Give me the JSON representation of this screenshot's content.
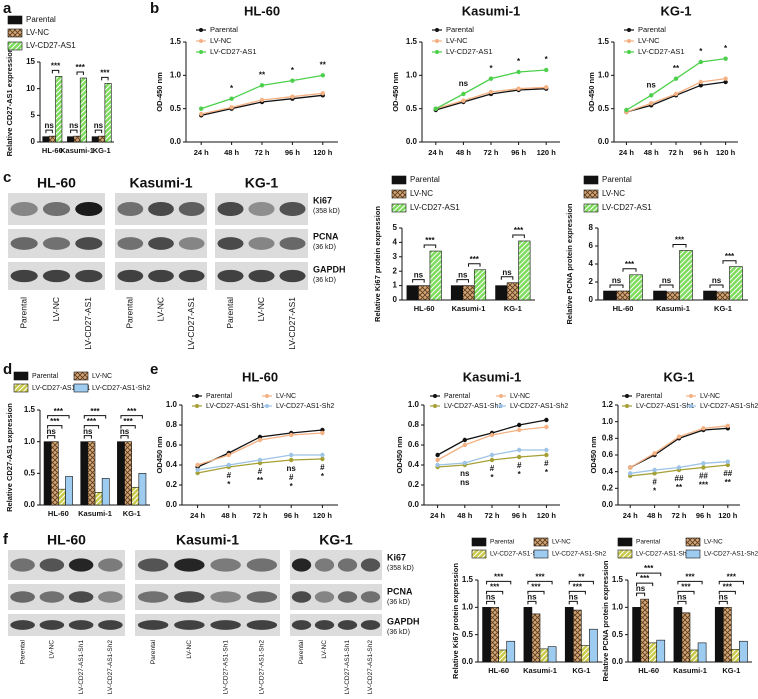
{
  "panel_labels": [
    "a",
    "b",
    "c",
    "d",
    "e",
    "f"
  ],
  "blots": [
    {
      "titles": [
        "HL-60",
        "Kasumi-1",
        "KG-1"
      ],
      "proteins": [
        "Ki67",
        "PCNA",
        "GAPDH"
      ],
      "sizes": [
        "(358 kD)",
        "(36 kD)",
        "(36 kD)"
      ],
      "lanes": [
        "Parental",
        "LV-NC",
        "LV-CD27-AS1"
      ]
    },
    {
      "titles": [
        "HL-60",
        "Kasumi-1",
        "KG-1"
      ],
      "proteins": [
        "Ki67",
        "PCNA",
        "GAPDH"
      ],
      "sizes": [
        "(358 kD)",
        "(36 kD)",
        "(36 kD)"
      ],
      "lanes": [
        "Parental",
        "LV-NC",
        "LV-CD27-AS1-Sh1",
        "LV-CD27-AS1-Sh2"
      ]
    }
  ],
  "chart_data": [
    {
      "type": "bar",
      "categories": [
        "HL-60",
        "Kasumi-1",
        "KG-1"
      ],
      "ylabel": "Relative CD27-AS1 expression",
      "ylim": [
        0,
        15
      ],
      "yticks": [
        0,
        5,
        10,
        15
      ],
      "series": [
        {
          "name": "Parental",
          "color": "#111111",
          "values": [
            1,
            1,
            1
          ]
        },
        {
          "name": "LV-NC",
          "color": "#d2a679",
          "hatch": "cross",
          "values": [
            1.1,
            1.1,
            1.1
          ]
        },
        {
          "name": "LV-CD27-AS1",
          "color": "#7ddc5c",
          "hatch": "diagonal",
          "values": [
            12.3,
            12,
            11
          ]
        }
      ],
      "annotations": [
        [
          "ns",
          "***"
        ],
        [
          "ns",
          "***"
        ],
        [
          "ns",
          "***"
        ]
      ]
    },
    {
      "type": "line",
      "title": "HL-60",
      "categories": [
        "24 h",
        "48 h",
        "72 h",
        "96 h",
        "120 h"
      ],
      "ylabel": "OD-450 nm",
      "ylim": [
        0,
        1.5
      ],
      "yticks": [
        {
          "value": 0,
          "label": "0.0"
        },
        {
          "value": 0.5,
          "label": "0.5"
        },
        {
          "value": 1,
          "label": "1.0"
        },
        {
          "value": 1.5,
          "label": "1.5"
        }
      ],
      "series": [
        {
          "name": "Parental",
          "color": "#111111",
          "values": [
            0.4,
            0.5,
            0.6,
            0.65,
            0.7
          ]
        },
        {
          "name": "LV-NC",
          "color": "#f4b183",
          "values": [
            0.42,
            0.52,
            0.63,
            0.68,
            0.73
          ]
        },
        {
          "name": "LV-CD27-AS1",
          "color": "#4cd04c",
          "values": [
            0.5,
            0.65,
            0.85,
            0.92,
            1.0
          ]
        }
      ],
      "annotations": [
        [],
        [
          "*"
        ],
        [
          "**"
        ],
        [
          "*"
        ],
        [
          "**"
        ]
      ]
    },
    {
      "type": "line",
      "title": "Kasumi-1",
      "categories": [
        "24 h",
        "48 h",
        "72 h",
        "96 h",
        "120 h"
      ],
      "ylabel": "OD-450 nm",
      "ylim": [
        0,
        1.5
      ],
      "yticks": [
        {
          "value": 0,
          "label": "0.0"
        },
        {
          "value": 0.5,
          "label": "0.5"
        },
        {
          "value": 1,
          "label": "1.0"
        },
        {
          "value": 1.5,
          "label": "1.5"
        }
      ],
      "series": [
        {
          "name": "Parental",
          "color": "#111111",
          "values": [
            0.48,
            0.6,
            0.72,
            0.78,
            0.8
          ]
        },
        {
          "name": "LV-NC",
          "color": "#f4b183",
          "values": [
            0.5,
            0.62,
            0.75,
            0.8,
            0.82
          ]
        },
        {
          "name": "LV-CD27-AS1",
          "color": "#4cd04c",
          "values": [
            0.5,
            0.72,
            0.95,
            1.05,
            1.08
          ]
        }
      ],
      "annotations": [
        [],
        [
          "ns"
        ],
        [
          "*"
        ],
        [
          "*"
        ],
        [
          "*"
        ]
      ]
    },
    {
      "type": "line",
      "title": "KG-1",
      "categories": [
        "24 h",
        "48 h",
        "72 h",
        "96 h",
        "120 h"
      ],
      "ylabel": "OD-450 nm",
      "ylim": [
        0,
        1.5
      ],
      "yticks": [
        {
          "value": 0,
          "label": "0.0"
        },
        {
          "value": 0.5,
          "label": "0.5"
        },
        {
          "value": 1,
          "label": "1.0"
        },
        {
          "value": 1.5,
          "label": "1.5"
        }
      ],
      "series": [
        {
          "name": "Parental",
          "color": "#111111",
          "values": [
            0.45,
            0.55,
            0.7,
            0.85,
            0.9
          ]
        },
        {
          "name": "LV-NC",
          "color": "#f4b183",
          "values": [
            0.45,
            0.58,
            0.72,
            0.9,
            0.95
          ]
        },
        {
          "name": "LV-CD27-AS1",
          "color": "#4cd04c",
          "values": [
            0.48,
            0.7,
            0.95,
            1.2,
            1.25
          ]
        }
      ],
      "annotations": [
        [],
        [
          "ns"
        ],
        [
          "**"
        ],
        [
          "*"
        ],
        [
          "*"
        ]
      ]
    },
    {
      "type": "bar",
      "categories": [
        "HL-60",
        "Kasumi-1",
        "KG-1"
      ],
      "ylabel": "Relative Ki67 protein expression",
      "ylim": [
        0,
        5
      ],
      "yticks": [
        0,
        1,
        2,
        3,
        4,
        5
      ],
      "series": [
        {
          "name": "Parental",
          "color": "#111111",
          "values": [
            1,
            1,
            1
          ]
        },
        {
          "name": "LV-NC",
          "color": "#d2a679",
          "hatch": "cross",
          "values": [
            1,
            1,
            1.2
          ]
        },
        {
          "name": "LV-CD27-AS1",
          "color": "#7ddc5c",
          "hatch": "diagonal",
          "values": [
            3.4,
            2.1,
            4.1
          ]
        }
      ],
      "annotations": [
        [
          "ns",
          "***"
        ],
        [
          "ns",
          "***"
        ],
        [
          "ns",
          "***"
        ]
      ]
    },
    {
      "type": "bar",
      "categories": [
        "HL-60",
        "Kasumi-1",
        "KG-1"
      ],
      "ylabel": "Relative PCNA protein expression",
      "ylim": [
        0,
        8
      ],
      "yticks": [
        0,
        2,
        4,
        6,
        8
      ],
      "series": [
        {
          "name": "Parental",
          "color": "#111111",
          "values": [
            1,
            1,
            1
          ]
        },
        {
          "name": "LV-NC",
          "color": "#d2a679",
          "hatch": "cross",
          "values": [
            1,
            0.9,
            0.9
          ]
        },
        {
          "name": "LV-CD27-AS1",
          "color": "#7ddc5c",
          "hatch": "diagonal",
          "values": [
            2.8,
            5.5,
            3.7
          ]
        }
      ],
      "annotations": [
        [
          "ns",
          "***"
        ],
        [
          "ns",
          "***"
        ],
        [
          "ns",
          "***"
        ]
      ]
    },
    {
      "type": "bar",
      "categories": [
        "HL-60",
        "Kasumi-1",
        "KG-1"
      ],
      "ylabel": "Relative CD27-AS1 expression",
      "ylim": [
        0,
        1.5
      ],
      "yticks": [
        {
          "value": 0,
          "label": "0.0"
        },
        {
          "value": 0.5,
          "label": "0.5"
        },
        {
          "value": 1,
          "label": "1.0"
        },
        {
          "value": 1.5,
          "label": "1.5"
        }
      ],
      "series": [
        {
          "name": "Parental",
          "color": "#111111",
          "values": [
            1,
            1,
            1
          ]
        },
        {
          "name": "LV-NC",
          "color": "#d2a679",
          "hatch": "cross",
          "values": [
            1,
            1,
            1
          ]
        },
        {
          "name": "LV-CD27-AS1-Sh1",
          "color": "#c9c94a",
          "hatch": "diagonal",
          "values": [
            0.25,
            0.2,
            0.28
          ]
        },
        {
          "name": "LV-CD27-AS1-Sh2",
          "color": "#9ecbf0",
          "values": [
            0.45,
            0.42,
            0.5
          ]
        }
      ],
      "annotations": [
        [
          "ns",
          "***",
          "***"
        ],
        [
          "ns",
          "***",
          "***"
        ],
        [
          "ns",
          "***",
          "***"
        ]
      ]
    },
    {
      "type": "line",
      "title": "HL-60",
      "categories": [
        "24 h",
        "48 h",
        "72 h",
        "96 h",
        "120 h"
      ],
      "ylabel": "OD450 nm",
      "ylim": [
        0,
        1.0
      ],
      "yticks": [
        {
          "value": 0,
          "label": "0.0"
        },
        {
          "value": 0.2,
          "label": "0.2"
        },
        {
          "value": 0.4,
          "label": "0.4"
        },
        {
          "value": 0.6,
          "label": "0.6"
        },
        {
          "value": 0.8,
          "label": "0.8"
        },
        {
          "value": 1,
          "label": "1.0"
        }
      ],
      "series": [
        {
          "name": "Parental",
          "color": "#111111",
          "values": [
            0.38,
            0.52,
            0.68,
            0.72,
            0.75
          ]
        },
        {
          "name": "LV-NC",
          "color": "#f4b183",
          "values": [
            0.4,
            0.5,
            0.65,
            0.7,
            0.72
          ]
        },
        {
          "name": "LV-CD27-AS1-Sh1",
          "color": "#a5a034",
          "values": [
            0.32,
            0.38,
            0.42,
            0.45,
            0.46
          ]
        },
        {
          "name": "LV-CD27-AS1-Sh2",
          "color": "#9dc3e6",
          "values": [
            0.35,
            0.4,
            0.45,
            0.5,
            0.5
          ]
        }
      ],
      "annotations": [
        [],
        [
          "#",
          "*"
        ],
        [
          "#",
          "**"
        ],
        [
          "ns",
          "#",
          "*"
        ],
        [
          "#",
          "*"
        ]
      ]
    },
    {
      "type": "line",
      "title": "Kasumi-1",
      "categories": [
        "24 h",
        "48 h",
        "72 h",
        "96 h",
        "120 h"
      ],
      "ylabel": "OD450 nm",
      "ylim": [
        0,
        1.0
      ],
      "yticks": [
        {
          "value": 0,
          "label": "0.0"
        },
        {
          "value": 0.2,
          "label": "0.2"
        },
        {
          "value": 0.4,
          "label": "0.4"
        },
        {
          "value": 0.6,
          "label": "0.6"
        },
        {
          "value": 0.8,
          "label": "0.8"
        },
        {
          "value": 1,
          "label": "1.0"
        }
      ],
      "series": [
        {
          "name": "Parental",
          "color": "#111111",
          "values": [
            0.5,
            0.65,
            0.72,
            0.8,
            0.85
          ]
        },
        {
          "name": "LV-NC",
          "color": "#f4b183",
          "values": [
            0.45,
            0.6,
            0.7,
            0.75,
            0.78
          ]
        },
        {
          "name": "LV-CD27-AS1-Sh1",
          "color": "#a5a034",
          "values": [
            0.38,
            0.4,
            0.45,
            0.48,
            0.5
          ]
        },
        {
          "name": "LV-CD27-AS1-Sh2",
          "color": "#9dc3e6",
          "values": [
            0.4,
            0.42,
            0.5,
            0.55,
            0.55
          ]
        }
      ],
      "annotations": [
        [],
        [
          "ns",
          "ns"
        ],
        [
          "#",
          "*"
        ],
        [
          "#",
          "*"
        ],
        [
          "#",
          "*"
        ]
      ]
    },
    {
      "type": "line",
      "title": "KG-1",
      "categories": [
        "24 h",
        "48 h",
        "72 h",
        "96 h",
        "120 h"
      ],
      "ylabel": "OD450 nm",
      "ylim": [
        0,
        1.2
      ],
      "yticks": [
        {
          "value": 0,
          "label": "0.0"
        },
        {
          "value": 0.2,
          "label": "0.2"
        },
        {
          "value": 0.4,
          "label": "0.4"
        },
        {
          "value": 0.6,
          "label": "0.6"
        },
        {
          "value": 0.8,
          "label": "0.8"
        },
        {
          "value": 1,
          "label": "1.0"
        },
        {
          "value": 1.2,
          "label": "1.2"
        }
      ],
      "series": [
        {
          "name": "Parental",
          "color": "#111111",
          "values": [
            0.45,
            0.6,
            0.8,
            0.9,
            0.92
          ]
        },
        {
          "name": "LV-NC",
          "color": "#f4b183",
          "values": [
            0.45,
            0.62,
            0.82,
            0.92,
            0.95
          ]
        },
        {
          "name": "LV-CD27-AS1-Sh1",
          "color": "#a5a034",
          "values": [
            0.35,
            0.38,
            0.42,
            0.45,
            0.48
          ]
        },
        {
          "name": "LV-CD27-AS1-Sh2",
          "color": "#9dc3e6",
          "values": [
            0.38,
            0.42,
            0.45,
            0.5,
            0.52
          ]
        }
      ],
      "annotations": [
        [],
        [
          "#",
          "*"
        ],
        [
          "##",
          "**"
        ],
        [
          "##",
          "***"
        ],
        [
          "##",
          "**"
        ]
      ]
    },
    {
      "type": "bar",
      "categories": [
        "HL-60",
        "Kasumi-1",
        "KG-1"
      ],
      "ylabel": "Relative Ki67 protein expression",
      "ylim": [
        0,
        1.5
      ],
      "yticks": [
        {
          "value": 0,
          "label": "0.0"
        },
        {
          "value": 0.5,
          "label": "0.5"
        },
        {
          "value": 1,
          "label": "1.0"
        },
        {
          "value": 1.5,
          "label": "1.5"
        }
      ],
      "series": [
        {
          "name": "Parental",
          "color": "#111111",
          "values": [
            1,
            1,
            1
          ]
        },
        {
          "name": "LV-NC",
          "color": "#d2a679",
          "hatch": "cross",
          "values": [
            1,
            0.88,
            0.95
          ]
        },
        {
          "name": "LV-CD27-AS1-Sh1",
          "color": "#c9c94a",
          "hatch": "diagonal",
          "values": [
            0.22,
            0.24,
            0.3
          ]
        },
        {
          "name": "LV-CD27-AS1-Sh2",
          "color": "#9ecbf0",
          "values": [
            0.38,
            0.28,
            0.6
          ]
        }
      ],
      "annotations": [
        [
          "ns",
          "***",
          "***"
        ],
        [
          "ns",
          "***",
          "***"
        ],
        [
          "ns",
          "***",
          "**"
        ]
      ]
    },
    {
      "type": "bar",
      "categories": [
        "HL-60",
        "Kasumi-1",
        "KG-1"
      ],
      "ylabel": "Relative PCNA protein expression",
      "ylim": [
        0,
        1.5
      ],
      "yticks": [
        {
          "value": 0,
          "label": "0.0"
        },
        {
          "value": 0.5,
          "label": "0.5"
        },
        {
          "value": 1,
          "label": "1.0"
        },
        {
          "value": 1.5,
          "label": "1.5"
        }
      ],
      "series": [
        {
          "name": "Parental",
          "color": "#111111",
          "values": [
            1,
            1,
            1
          ]
        },
        {
          "name": "LV-NC",
          "color": "#d2a679",
          "hatch": "cross",
          "values": [
            1.15,
            0.9,
            1
          ]
        },
        {
          "name": "LV-CD27-AS1-Sh1",
          "color": "#c9c94a",
          "hatch": "diagonal",
          "values": [
            0.35,
            0.22,
            0.23
          ]
        },
        {
          "name": "LV-CD27-AS1-Sh2",
          "color": "#9ecbf0",
          "values": [
            0.4,
            0.35,
            0.38
          ]
        }
      ],
      "annotations": [
        [
          "ns",
          "***",
          "***"
        ],
        [
          "ns",
          "***",
          "***"
        ],
        [
          "ns",
          "***",
          "***"
        ]
      ]
    }
  ]
}
